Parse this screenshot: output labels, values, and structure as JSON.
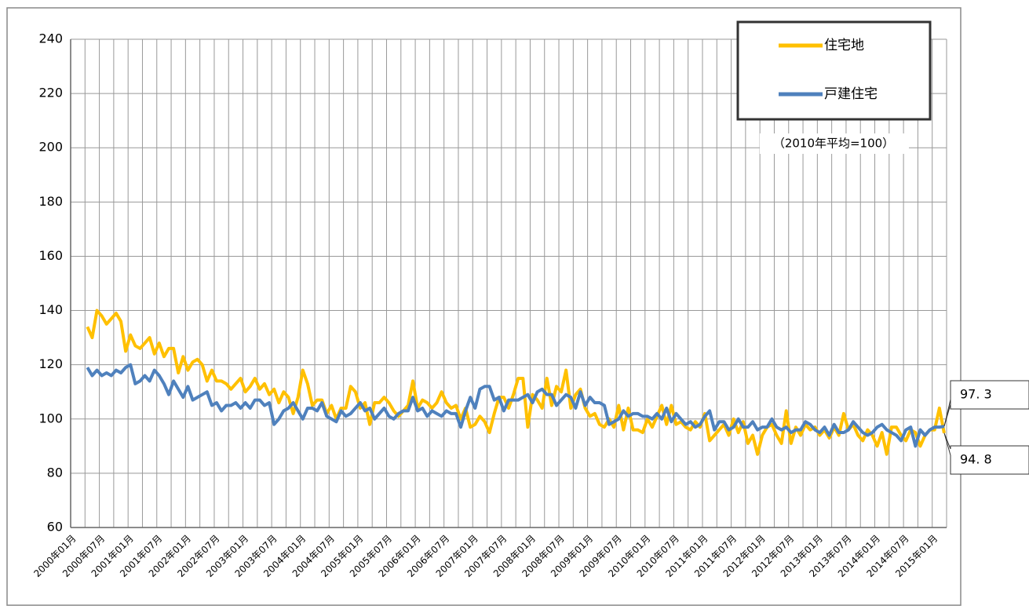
{
  "chart_data": {
    "type": "line",
    "categories": [
      "2000年01月",
      null,
      null,
      null,
      null,
      null,
      "2000年07月",
      null,
      null,
      null,
      null,
      null,
      "2001年01月",
      null,
      null,
      null,
      null,
      null,
      "2001年07月",
      null,
      null,
      null,
      null,
      null,
      "2002年01月",
      null,
      null,
      null,
      null,
      null,
      "2002年07月",
      null,
      null,
      null,
      null,
      null,
      "2003年01月",
      null,
      null,
      null,
      null,
      null,
      "2003年07月",
      null,
      null,
      null,
      null,
      null,
      "2004年01月",
      null,
      null,
      null,
      null,
      null,
      "2004年07月",
      null,
      null,
      null,
      null,
      null,
      "2005年01月",
      null,
      null,
      null,
      null,
      null,
      "2005年07月",
      null,
      null,
      null,
      null,
      null,
      "2006年01月",
      null,
      null,
      null,
      null,
      null,
      "2006年07月",
      null,
      null,
      null,
      null,
      null,
      "2007年01月",
      null,
      null,
      null,
      null,
      null,
      "2007年07月",
      null,
      null,
      null,
      null,
      null,
      "2008年01月",
      null,
      null,
      null,
      null,
      null,
      "2008年07月",
      null,
      null,
      null,
      null,
      null,
      "2009年01月",
      null,
      null,
      null,
      null,
      null,
      "2009年07月",
      null,
      null,
      null,
      null,
      null,
      "2010年01月",
      null,
      null,
      null,
      null,
      null,
      "2010年07月",
      null,
      null,
      null,
      null,
      null,
      "2011年01月",
      null,
      null,
      null,
      null,
      null,
      "2011年07月",
      null,
      null,
      null,
      null,
      null,
      "2012年01月",
      null,
      null,
      null,
      null,
      null,
      "2012年07月",
      null,
      null,
      null,
      null,
      null,
      "2013年01月",
      null,
      null,
      null,
      null,
      null,
      "2013年07月",
      null,
      null,
      null,
      null,
      null,
      "2014年01月",
      null,
      null,
      null,
      null,
      null,
      "2014年07月",
      null,
      null,
      null,
      null,
      null,
      "2015年01月",
      null,
      null
    ],
    "series": [
      {
        "name": "住宅地",
        "color": "#FFC000",
        "values": [
          null,
          null,
          null,
          134,
          130,
          140,
          138,
          135,
          137,
          139,
          136,
          125,
          131,
          127,
          126,
          128,
          130,
          124,
          128,
          123,
          126,
          126,
          117,
          123,
          118,
          121,
          122,
          120,
          114,
          118,
          114,
          114,
          113,
          111,
          113,
          115,
          110,
          112,
          115,
          111,
          113,
          109,
          111,
          106,
          110,
          108,
          102,
          108,
          118,
          113,
          105,
          107,
          107,
          102,
          105,
          100,
          104,
          104,
          112,
          110,
          104,
          106,
          98,
          106,
          106,
          108,
          106,
          103,
          101,
          103,
          105,
          114,
          104,
          107,
          106,
          104,
          106,
          110,
          106,
          104,
          105,
          100,
          104,
          97,
          98,
          101,
          99,
          95,
          102,
          108,
          108,
          104,
          109,
          115,
          115,
          97,
          109,
          107,
          104,
          115,
          105,
          112,
          110,
          118,
          104,
          109,
          111,
          104,
          101,
          102,
          98,
          97,
          100,
          97,
          105,
          96,
          104,
          96,
          96,
          95,
          100,
          97,
          101,
          105,
          98,
          105,
          98,
          99,
          97,
          96,
          99,
          97,
          102,
          92,
          94,
          96,
          98,
          94,
          100,
          95,
          99,
          91,
          94,
          87,
          94,
          97,
          98,
          94,
          91,
          103,
          91,
          97,
          94,
          98,
          96,
          97,
          94,
          96,
          93,
          97,
          94,
          102,
          96,
          98,
          94,
          92,
          96,
          94,
          90,
          95,
          87,
          97,
          97,
          94,
          92,
          96,
          95,
          90,
          94,
          96,
          96,
          104,
          94.8
        ]
      },
      {
        "name": "戸建住宅",
        "color": "#4F81BD",
        "values": [
          null,
          null,
          null,
          119,
          116,
          118,
          116,
          117,
          116,
          118,
          117,
          119,
          120,
          113,
          114,
          116,
          114,
          118,
          116,
          113,
          109,
          114,
          111,
          108,
          112,
          107,
          108,
          109,
          110,
          105,
          106,
          103,
          105,
          105,
          106,
          104,
          106,
          104,
          107,
          107,
          105,
          106,
          98,
          100,
          103,
          104,
          106,
          103,
          100,
          104,
          104,
          103,
          106,
          101,
          100,
          99,
          103,
          101,
          102,
          104,
          106,
          103,
          104,
          100,
          102,
          104,
          101,
          100,
          102,
          103,
          103,
          108,
          103,
          104,
          101,
          103,
          102,
          101,
          103,
          102,
          102,
          97,
          103,
          108,
          104,
          111,
          112,
          112,
          107,
          108,
          103,
          107,
          107,
          107,
          108,
          109,
          106,
          110,
          111,
          109,
          109,
          105,
          107,
          109,
          108,
          104,
          110,
          105,
          108,
          106,
          106,
          105,
          98,
          99,
          100,
          103,
          101,
          102,
          102,
          101,
          101,
          100,
          102,
          100,
          104,
          99,
          102,
          100,
          98,
          99,
          97,
          98,
          101,
          103,
          96,
          99,
          99,
          96,
          97,
          100,
          97,
          97,
          99,
          96,
          97,
          97,
          100,
          97,
          96,
          97,
          95,
          96,
          96,
          99,
          98,
          96,
          95,
          97,
          94,
          98,
          95,
          95,
          96,
          99,
          97,
          95,
          94,
          95,
          97,
          98,
          96,
          95,
          94,
          92,
          96,
          97,
          90,
          96,
          94,
          96,
          97,
          97,
          97.3
        ]
      }
    ],
    "annotations": [
      "97. 3",
      "94. 8"
    ],
    "note": "（2010年平均=100）",
    "ylim": [
      60,
      240
    ],
    "yticks": [
      60,
      80,
      100,
      120,
      140,
      160,
      180,
      200,
      220,
      240
    ],
    "grid": true,
    "legend": "upper right"
  }
}
